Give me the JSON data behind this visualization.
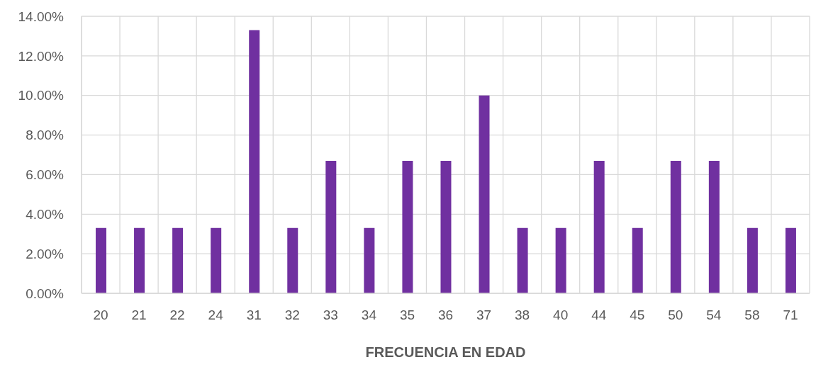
{
  "chart_data": {
    "type": "bar",
    "xlabel": "FRECUENCIA EN EDAD",
    "categories": [
      "20",
      "21",
      "22",
      "24",
      "31",
      "32",
      "33",
      "34",
      "35",
      "36",
      "37",
      "38",
      "40",
      "44",
      "45",
      "50",
      "54",
      "58",
      "71"
    ],
    "values": [
      3.3,
      3.3,
      3.3,
      3.3,
      13.3,
      3.3,
      6.7,
      3.3,
      6.7,
      6.7,
      10,
      3.3,
      3.3,
      6.7,
      3.3,
      6.7,
      6.7,
      3.3,
      3.3
    ],
    "color": "#7030a0",
    "ylim": [
      0,
      14
    ],
    "yticks": [
      {
        "value": 0,
        "label": "0.00%"
      },
      {
        "value": 2,
        "label": "2.00%"
      },
      {
        "value": 4,
        "label": "4.00%"
      },
      {
        "value": 6,
        "label": "6.00%"
      },
      {
        "value": 8,
        "label": "8.00%"
      },
      {
        "value": 10,
        "label": "10.00%"
      },
      {
        "value": 12,
        "label": "12.00%"
      },
      {
        "value": 14,
        "label": "14.00%"
      }
    ],
    "grid": true
  }
}
